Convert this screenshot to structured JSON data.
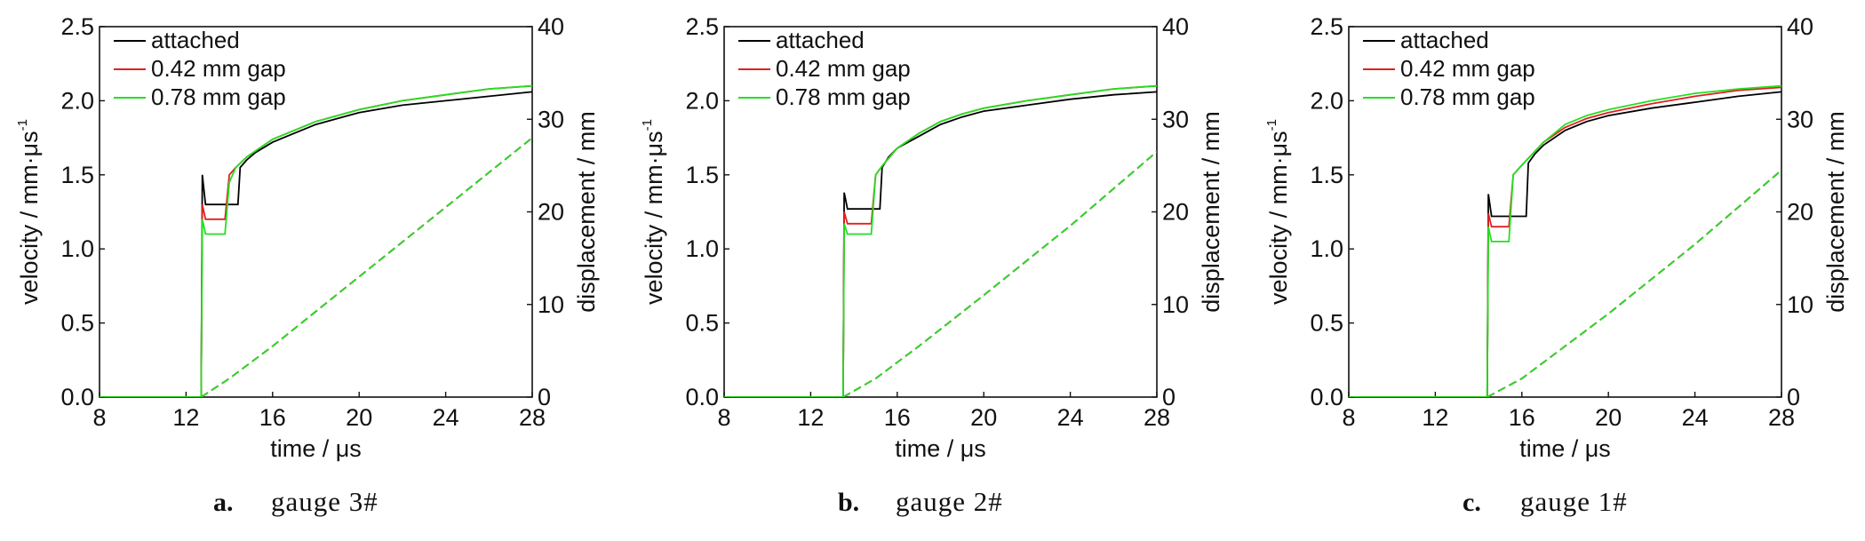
{
  "chart_data": [
    {
      "type": "line",
      "caption_letter": "a.",
      "caption_text": "gauge 3#",
      "xlabel": "time / μs",
      "ylabel_left": "velocity / mm·μs",
      "ylabel_left_exponent": "-1",
      "ylabel_right": "displacement / mm",
      "xlim": [
        8,
        28
      ],
      "ylim_left": [
        0,
        2.5
      ],
      "ylim_right": [
        0,
        40
      ],
      "xticks": [
        "8",
        "12",
        "16",
        "20",
        "24",
        "28"
      ],
      "yticks_left": [
        "0.0",
        "0.5",
        "1.0",
        "1.5",
        "2.0",
        "2.5"
      ],
      "yticks_right": [
        "0",
        "10",
        "20",
        "30",
        "40"
      ],
      "legend": [
        "attached",
        "0.42 mm gap",
        "0.78 mm gap"
      ],
      "legend_position": "top-left",
      "colors": [
        "#000000",
        "#e02020",
        "#22e022"
      ],
      "series": [
        {
          "name": "attached",
          "kind": "velocity",
          "x": [
            8,
            12.7,
            12.75,
            12.9,
            13.2,
            14.4,
            14.5,
            14.8,
            15.2,
            16.0,
            17.0,
            18.0,
            19.0,
            20.0,
            22.0,
            24.0,
            26.0,
            28.0
          ],
          "y": [
            0,
            0,
            1.5,
            1.3,
            1.3,
            1.3,
            1.55,
            1.6,
            1.65,
            1.72,
            1.78,
            1.84,
            1.88,
            1.92,
            1.97,
            2.0,
            2.03,
            2.06
          ]
        },
        {
          "name": "0.42 mm gap",
          "kind": "velocity",
          "x": [
            8,
            12.7,
            12.75,
            12.9,
            13.2,
            13.8,
            14.0,
            14.3,
            14.8,
            16.0,
            17.0,
            18.0,
            19.0,
            20.0,
            22.0,
            24.0,
            26.0,
            28.0
          ],
          "y": [
            0,
            0,
            1.3,
            1.2,
            1.2,
            1.2,
            1.5,
            1.55,
            1.62,
            1.74,
            1.8,
            1.86,
            1.9,
            1.94,
            2.0,
            2.04,
            2.08,
            2.1
          ]
        },
        {
          "name": "0.78 mm gap",
          "kind": "velocity",
          "x": [
            8,
            12.7,
            12.75,
            12.9,
            13.2,
            13.8,
            14.0,
            14.3,
            14.8,
            16.0,
            17.0,
            18.0,
            19.0,
            20.0,
            22.0,
            24.0,
            26.0,
            28.0
          ],
          "y": [
            0,
            0,
            1.2,
            1.1,
            1.1,
            1.1,
            1.45,
            1.55,
            1.62,
            1.74,
            1.8,
            1.86,
            1.9,
            1.94,
            2.0,
            2.04,
            2.08,
            2.1
          ]
        },
        {
          "name": "attached",
          "kind": "displacement",
          "x": [
            12.7,
            14,
            16,
            20,
            24,
            28
          ],
          "y": [
            0,
            2,
            5.5,
            13,
            20.5,
            28
          ]
        },
        {
          "name": "0.42 mm gap",
          "kind": "displacement",
          "x": [
            12.7,
            14,
            16,
            20,
            24,
            28
          ],
          "y": [
            0,
            2,
            5.5,
            13,
            20.5,
            28
          ]
        },
        {
          "name": "0.78 mm gap",
          "kind": "displacement",
          "x": [
            12.7,
            14,
            16,
            20,
            24,
            28
          ],
          "y": [
            0,
            2,
            5.5,
            13,
            20.5,
            28
          ]
        }
      ]
    },
    {
      "type": "line",
      "caption_letter": "b.",
      "caption_text": "gauge 2#",
      "xlabel": "time / μs",
      "ylabel_left": "velocity / mm·μs",
      "ylabel_left_exponent": "-1",
      "ylabel_right": "displacement / mm",
      "xlim": [
        8,
        28
      ],
      "ylim_left": [
        0,
        2.5
      ],
      "ylim_right": [
        0,
        40
      ],
      "xticks": [
        "8",
        "12",
        "16",
        "20",
        "24",
        "28"
      ],
      "yticks_left": [
        "0.0",
        "0.5",
        "1.0",
        "1.5",
        "2.0",
        "2.5"
      ],
      "yticks_right": [
        "0",
        "10",
        "20",
        "30",
        "40"
      ],
      "legend": [
        "attached",
        "0.42 mm gap",
        "0.78 mm gap"
      ],
      "legend_position": "top-left",
      "colors": [
        "#000000",
        "#e02020",
        "#22e022"
      ],
      "series": [
        {
          "name": "attached",
          "kind": "velocity",
          "x": [
            8,
            13.5,
            13.55,
            13.7,
            14.0,
            15.2,
            15.3,
            15.6,
            16.0,
            17.0,
            18.0,
            19.0,
            20.0,
            22.0,
            24.0,
            26.0,
            28.0
          ],
          "y": [
            0,
            0,
            1.38,
            1.27,
            1.27,
            1.27,
            1.55,
            1.62,
            1.68,
            1.76,
            1.84,
            1.89,
            1.93,
            1.97,
            2.01,
            2.04,
            2.06
          ]
        },
        {
          "name": "0.42 mm gap",
          "kind": "velocity",
          "x": [
            8,
            13.5,
            13.55,
            13.7,
            14.0,
            14.8,
            15.0,
            15.3,
            16.0,
            17.0,
            18.0,
            19.0,
            20.0,
            22.0,
            24.0,
            26.0,
            28.0
          ],
          "y": [
            0,
            0,
            1.25,
            1.17,
            1.17,
            1.17,
            1.5,
            1.56,
            1.68,
            1.78,
            1.86,
            1.91,
            1.95,
            2.0,
            2.04,
            2.08,
            2.1
          ]
        },
        {
          "name": "0.78 mm gap",
          "kind": "velocity",
          "x": [
            8,
            13.5,
            13.55,
            13.7,
            14.0,
            14.8,
            15.0,
            15.3,
            16.0,
            17.0,
            18.0,
            19.0,
            20.0,
            22.0,
            24.0,
            26.0,
            28.0
          ],
          "y": [
            0,
            0,
            1.17,
            1.1,
            1.1,
            1.1,
            1.5,
            1.56,
            1.68,
            1.78,
            1.86,
            1.91,
            1.95,
            2.0,
            2.04,
            2.08,
            2.1
          ]
        },
        {
          "name": "attached",
          "kind": "displacement",
          "x": [
            13.5,
            15,
            17,
            20,
            24,
            28
          ],
          "y": [
            0,
            2,
            5.5,
            11,
            18.5,
            26.5
          ]
        },
        {
          "name": "0.42 mm gap",
          "kind": "displacement",
          "x": [
            13.5,
            15,
            17,
            20,
            24,
            28
          ],
          "y": [
            0,
            2,
            5.5,
            11,
            18.5,
            26.5
          ]
        },
        {
          "name": "0.78 mm gap",
          "kind": "displacement",
          "x": [
            13.5,
            15,
            17,
            20,
            24,
            28
          ],
          "y": [
            0,
            2,
            5.5,
            11,
            18.5,
            26.5
          ]
        }
      ]
    },
    {
      "type": "line",
      "caption_letter": "c.",
      "caption_text": "gauge 1#",
      "xlabel": "time / μs",
      "ylabel_left": "velocity / mm·μs",
      "ylabel_left_exponent": "-1",
      "ylabel_right": "displacement / mm",
      "xlim": [
        8,
        28
      ],
      "ylim_left": [
        0,
        2.5
      ],
      "ylim_right": [
        0,
        40
      ],
      "xticks": [
        "8",
        "12",
        "16",
        "20",
        "24",
        "28"
      ],
      "yticks_left": [
        "0.0",
        "0.5",
        "1.0",
        "1.5",
        "2.0",
        "2.5"
      ],
      "yticks_right": [
        "0",
        "10",
        "20",
        "30",
        "40"
      ],
      "legend": [
        "attached",
        "0.42 mm gap",
        "0.78 mm gap"
      ],
      "legend_position": "top-left",
      "colors": [
        "#000000",
        "#e02020",
        "#22e022"
      ],
      "series": [
        {
          "name": "attached",
          "kind": "velocity",
          "x": [
            8,
            14.4,
            14.45,
            14.6,
            14.9,
            16.2,
            16.3,
            16.6,
            17.0,
            18.0,
            19.0,
            20.0,
            22.0,
            24.0,
            26.0,
            28.0
          ],
          "y": [
            0,
            0,
            1.37,
            1.22,
            1.22,
            1.22,
            1.58,
            1.64,
            1.7,
            1.8,
            1.86,
            1.9,
            1.95,
            1.99,
            2.03,
            2.06
          ]
        },
        {
          "name": "0.42 mm gap",
          "kind": "velocity",
          "x": [
            8,
            14.4,
            14.45,
            14.6,
            14.9,
            15.4,
            15.6,
            15.9,
            17.0,
            18.0,
            19.0,
            20.0,
            22.0,
            24.0,
            26.0,
            28.0
          ],
          "y": [
            0,
            0,
            1.24,
            1.15,
            1.15,
            1.15,
            1.5,
            1.55,
            1.72,
            1.82,
            1.88,
            1.92,
            1.98,
            2.03,
            2.07,
            2.09
          ]
        },
        {
          "name": "0.78 mm gap",
          "kind": "velocity",
          "x": [
            8,
            14.4,
            14.45,
            14.6,
            14.9,
            15.4,
            15.6,
            15.9,
            17.0,
            18.0,
            19.0,
            20.0,
            22.0,
            24.0,
            26.0,
            28.0
          ],
          "y": [
            0,
            0,
            1.15,
            1.05,
            1.05,
            1.05,
            1.5,
            1.55,
            1.72,
            1.84,
            1.9,
            1.94,
            2.0,
            2.05,
            2.08,
            2.1
          ]
        },
        {
          "name": "attached",
          "kind": "displacement",
          "x": [
            14.4,
            16,
            18,
            20,
            24,
            28
          ],
          "y": [
            0,
            2,
            5.5,
            9,
            16.5,
            24.5
          ]
        },
        {
          "name": "0.42 mm gap",
          "kind": "displacement",
          "x": [
            14.4,
            16,
            18,
            20,
            24,
            28
          ],
          "y": [
            0,
            2,
            5.5,
            9,
            16.5,
            24.5
          ]
        },
        {
          "name": "0.78 mm gap",
          "kind": "displacement",
          "x": [
            14.4,
            16,
            18,
            20,
            24,
            28
          ],
          "y": [
            0,
            2,
            5.5,
            9,
            16.5,
            24.5
          ]
        }
      ]
    }
  ]
}
